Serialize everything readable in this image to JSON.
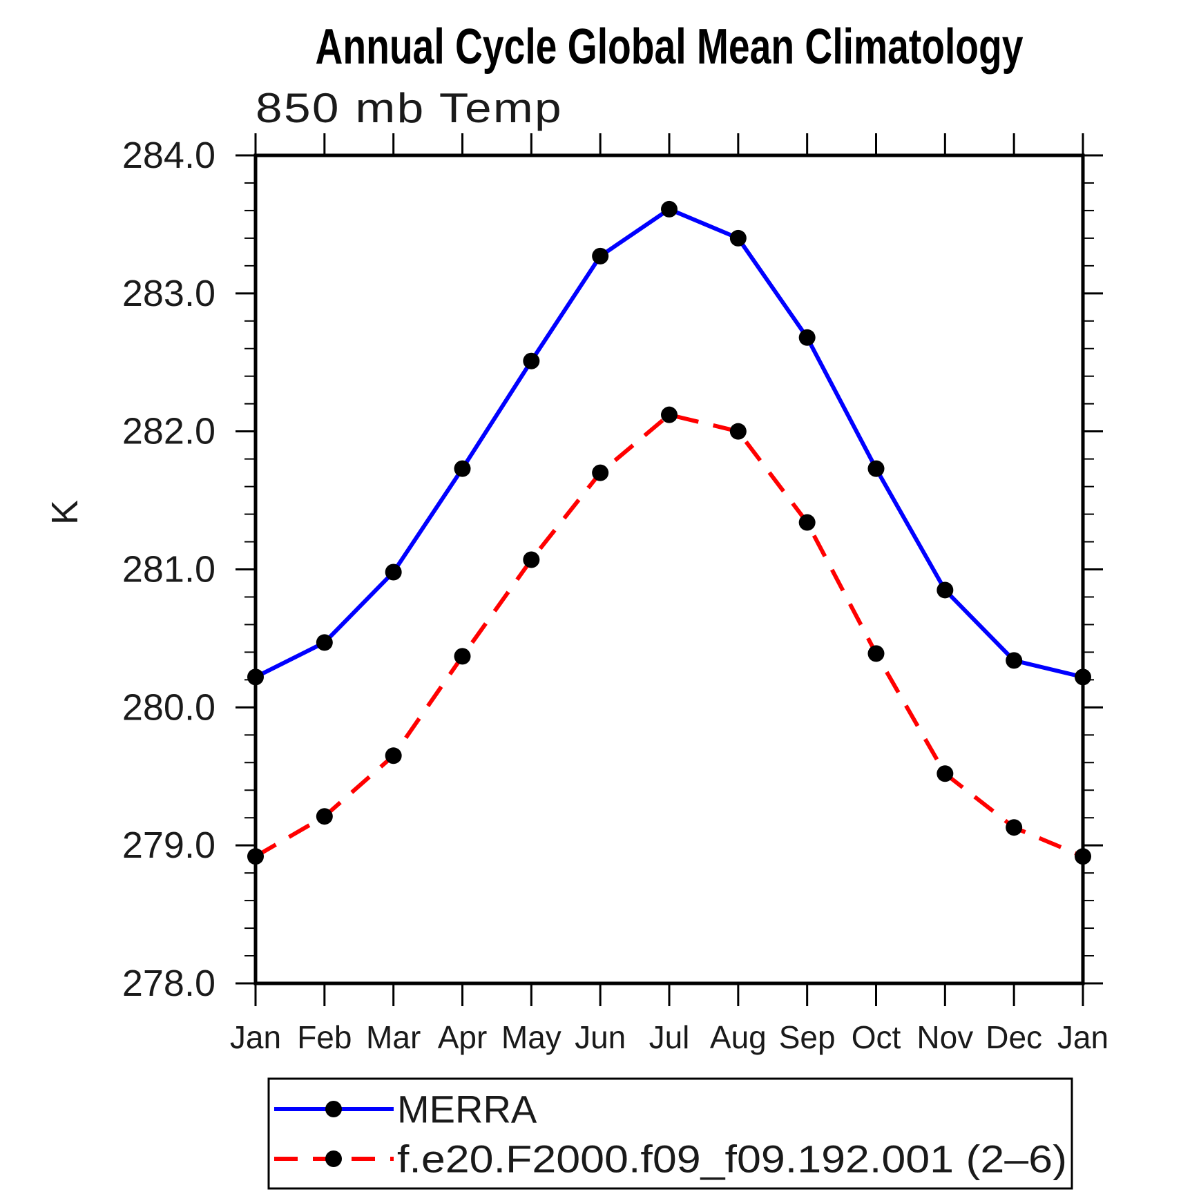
{
  "title": "Annual Cycle Global Mean Climatology",
  "subtitle": "850 mb Temp",
  "y_axis": {
    "label": "K",
    "min": 278.0,
    "max": 284.0,
    "major_step": 1.0,
    "minor_step": 0.2,
    "tick_labels": [
      "284.0",
      "283.0",
      "282.0",
      "281.0",
      "280.0",
      "279.0",
      "278.0"
    ]
  },
  "x_axis": {
    "labels": [
      "Jan",
      "Feb",
      "Mar",
      "Apr",
      "May",
      "Jun",
      "Jul",
      "Aug",
      "Sep",
      "Oct",
      "Nov",
      "Dec",
      "Jan"
    ]
  },
  "legend": [
    {
      "label": "MERRA",
      "color": "#0000ff",
      "style": "solid"
    },
    {
      "label": "f.e20.F2000.f09_f09.192.001 (2–6)",
      "color": "#ff0000",
      "style": "dashed"
    }
  ],
  "chart_data": {
    "type": "line",
    "title": "Annual Cycle Global Mean Climatology",
    "subtitle": "850 mb Temp",
    "xlabel": "",
    "ylabel": "K",
    "ylim": [
      278.0,
      284.0
    ],
    "grid": false,
    "legend_position": "bottom",
    "categories": [
      "Jan",
      "Feb",
      "Mar",
      "Apr",
      "May",
      "Jun",
      "Jul",
      "Aug",
      "Sep",
      "Oct",
      "Nov",
      "Dec",
      "Jan"
    ],
    "series": [
      {
        "name": "MERRA",
        "color": "#0000ff",
        "style": "solid",
        "marker": "circle",
        "marker_color": "#000000",
        "values": [
          280.22,
          280.47,
          280.98,
          281.73,
          282.51,
          283.27,
          283.61,
          283.4,
          282.68,
          281.73,
          280.85,
          280.34,
          280.22
        ]
      },
      {
        "name": "f.e20.F2000.f09_f09.192.001 (2–6)",
        "color": "#ff0000",
        "style": "dashed",
        "marker": "circle",
        "marker_color": "#000000",
        "values": [
          278.92,
          279.21,
          279.65,
          280.37,
          281.07,
          281.7,
          282.12,
          282.0,
          281.34,
          280.39,
          279.52,
          279.13,
          278.92
        ]
      }
    ]
  }
}
